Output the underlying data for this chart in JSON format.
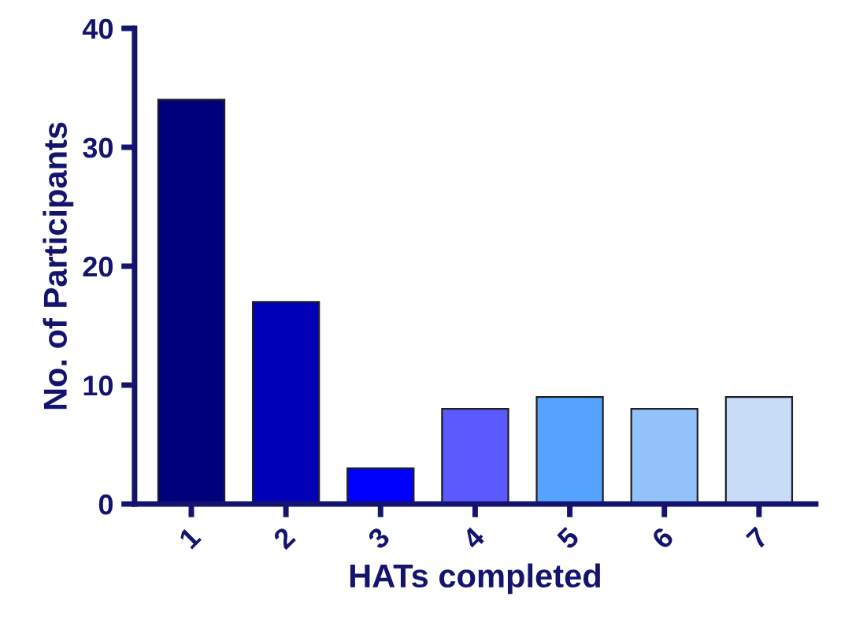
{
  "chart_data": {
    "type": "bar",
    "xlabel": "HATs completed",
    "ylabel": "No. of Participants",
    "categories": [
      "1",
      "2",
      "3",
      "4",
      "5",
      "6",
      "7"
    ],
    "values": [
      34,
      17,
      3,
      8,
      9,
      8,
      9
    ],
    "colors": [
      "#00007a",
      "#0000b8",
      "#0000ff",
      "#5a5aff",
      "#55a3ff",
      "#92c2fa",
      "#c8dcf8"
    ],
    "ylim": [
      0,
      40
    ],
    "yticks": [
      0,
      10,
      20,
      30,
      40
    ],
    "grid": false,
    "legend": false
  }
}
